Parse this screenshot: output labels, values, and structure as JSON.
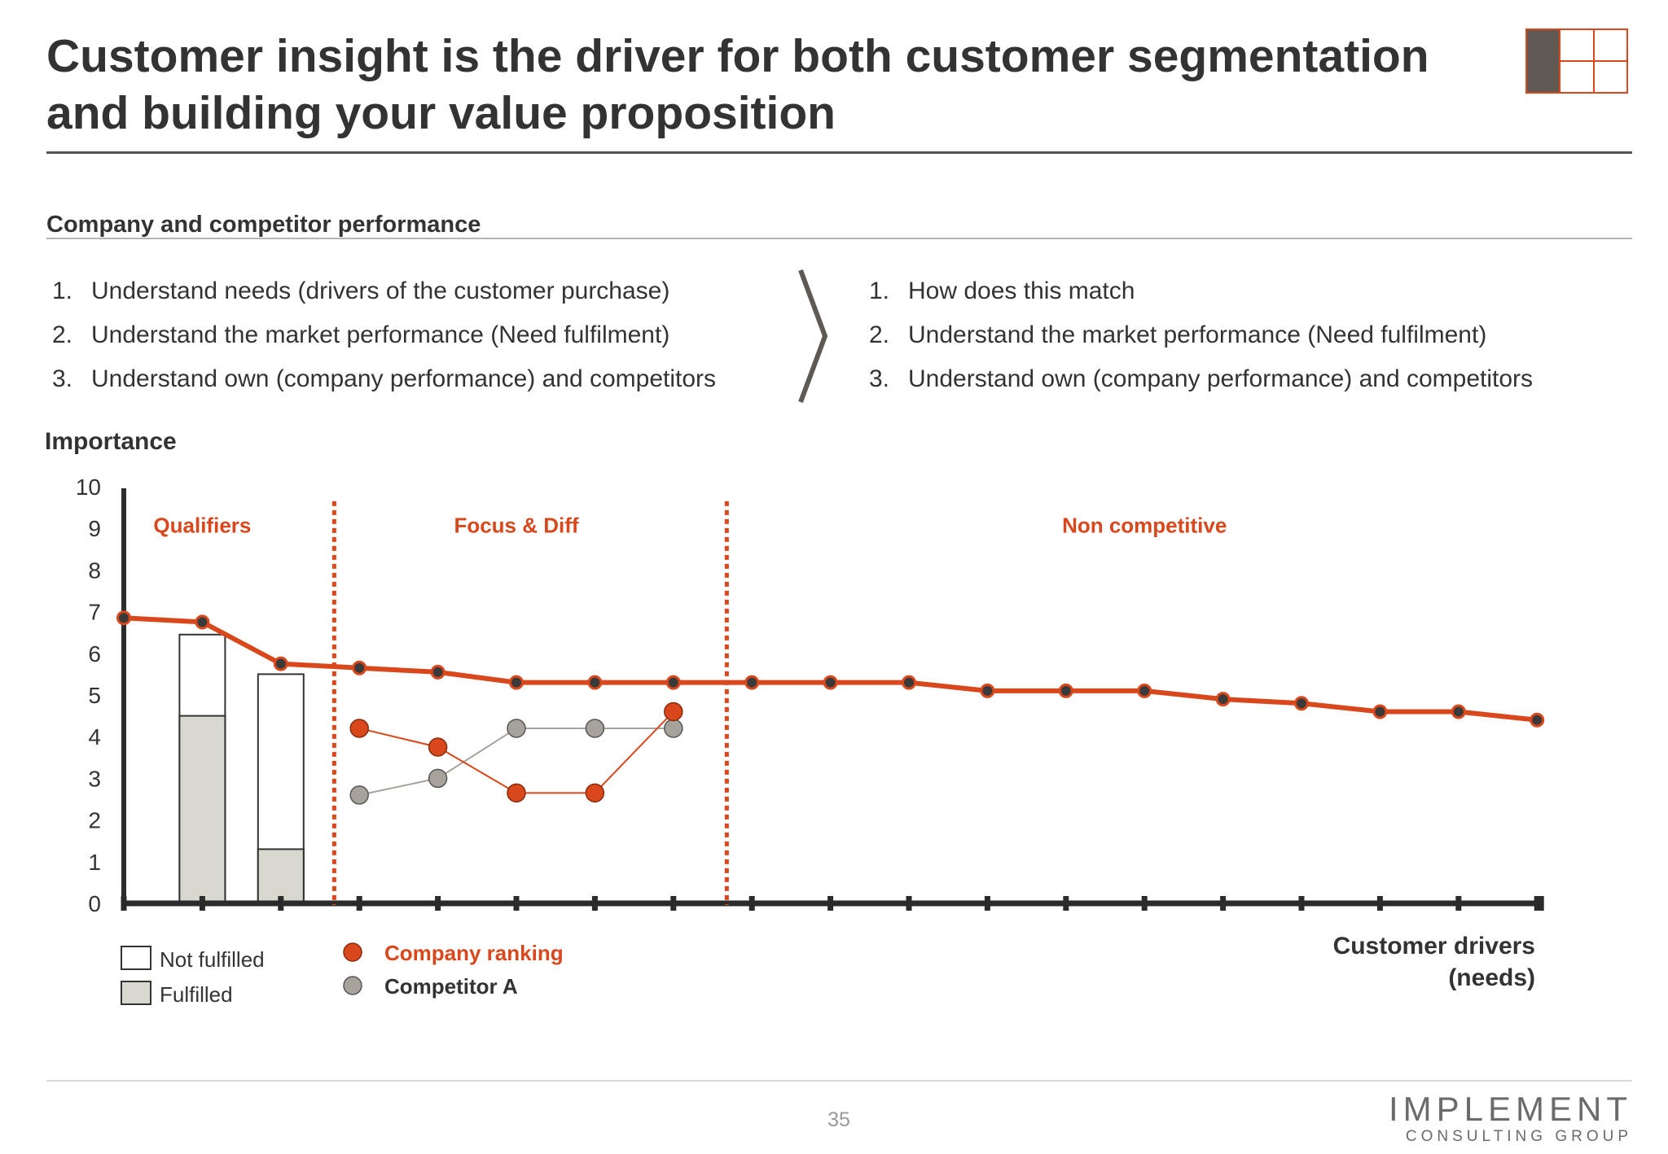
{
  "slide": {
    "title": "Customer insight is the driver for both customer segmentation and building your value proposition",
    "section_heading": "Company and competitor performance",
    "left_steps": [
      {
        "num": "1.",
        "text": "Understand needs (drivers of the customer purchase)"
      },
      {
        "num": "2.",
        "text": "Understand the market performance (Need fulfilment)"
      },
      {
        "num": "3.",
        "text": "Understand own (company performance) and competitors"
      }
    ],
    "right_steps": [
      {
        "num": "1.",
        "text": "How does this match"
      },
      {
        "num": "2.",
        "text": "Understand the market performance (Need fulfilment)"
      },
      {
        "num": "3.",
        "text": "Understand own (company performance) and competitors"
      }
    ],
    "page_number": "35",
    "brand": {
      "main": "IMPLEMENT",
      "sub": "CONSULTING GROUP"
    }
  },
  "colors": {
    "accent": "#D9481C",
    "competitor": "#A8A29C",
    "fulfilled": "#D8D8CF",
    "axis": "#2b2b2b",
    "logo_fill": "#5f5953"
  },
  "chart_data": {
    "type": "line",
    "ylabel": "Importance",
    "xlabel": "Customer drivers (needs)",
    "ylim": [
      0,
      10
    ],
    "yticks": [
      "0",
      "1",
      "2",
      "3",
      "4",
      "5",
      "6",
      "7",
      "8",
      "9",
      "10"
    ],
    "x_count": 19,
    "importance": [
      6.85,
      6.75,
      5.75,
      5.65,
      5.55,
      5.3,
      5.3,
      5.3,
      5.3,
      5.3,
      5.3,
      5.1,
      5.1,
      5.1,
      4.9,
      4.8,
      4.6,
      4.6,
      4.4
    ],
    "bars": [
      {
        "driver": 2,
        "total": 6.45,
        "fulfilled": 4.5
      },
      {
        "driver": 3,
        "total": 5.5,
        "fulfilled": 1.3
      }
    ],
    "series": [
      {
        "name": "Company ranking",
        "drivers": [
          4,
          5,
          6,
          7,
          8
        ],
        "values": [
          4.2,
          3.75,
          2.65,
          2.65,
          4.6
        ]
      },
      {
        "name": "Competitor A",
        "drivers": [
          4,
          5,
          6,
          7,
          8
        ],
        "values": [
          2.6,
          3.0,
          4.2,
          4.2,
          4.2
        ]
      }
    ],
    "dividers_after_driver": [
      3,
      8
    ],
    "regions": [
      {
        "label": "Qualifiers",
        "from": 1,
        "to": 3
      },
      {
        "label": "Focus & Diff",
        "from": 4,
        "to": 8
      },
      {
        "label": "Non competitive",
        "from": 9,
        "to": 19
      }
    ],
    "legend": {
      "bars": [
        "Not fulfilled",
        "Fulfilled"
      ],
      "markers": [
        "Company ranking",
        "Competitor A"
      ]
    }
  }
}
